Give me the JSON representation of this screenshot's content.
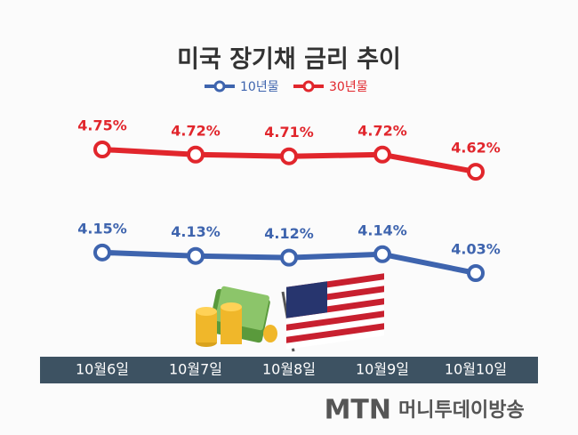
{
  "chart_data": {
    "type": "line",
    "title": "미국 장기채 금리 추이",
    "categories": [
      "10월6일",
      "10월7일",
      "10월8일",
      "10월9일",
      "10월10일"
    ],
    "series": [
      {
        "name": "10년물",
        "color": "#3e64ae",
        "values": [
          4.15,
          4.13,
          4.12,
          4.14,
          4.03
        ],
        "value_labels": [
          "4.15%",
          "4.13%",
          "4.12%",
          "4.14%",
          "4.03%"
        ]
      },
      {
        "name": "30년물",
        "color": "#e1262c",
        "values": [
          4.75,
          4.72,
          4.71,
          4.72,
          4.62
        ],
        "value_labels": [
          "4.75%",
          "4.72%",
          "4.71%",
          "4.72%",
          "4.62%"
        ]
      }
    ]
  },
  "footer": {
    "brand": "MTN",
    "name": "머니투데이방송"
  }
}
